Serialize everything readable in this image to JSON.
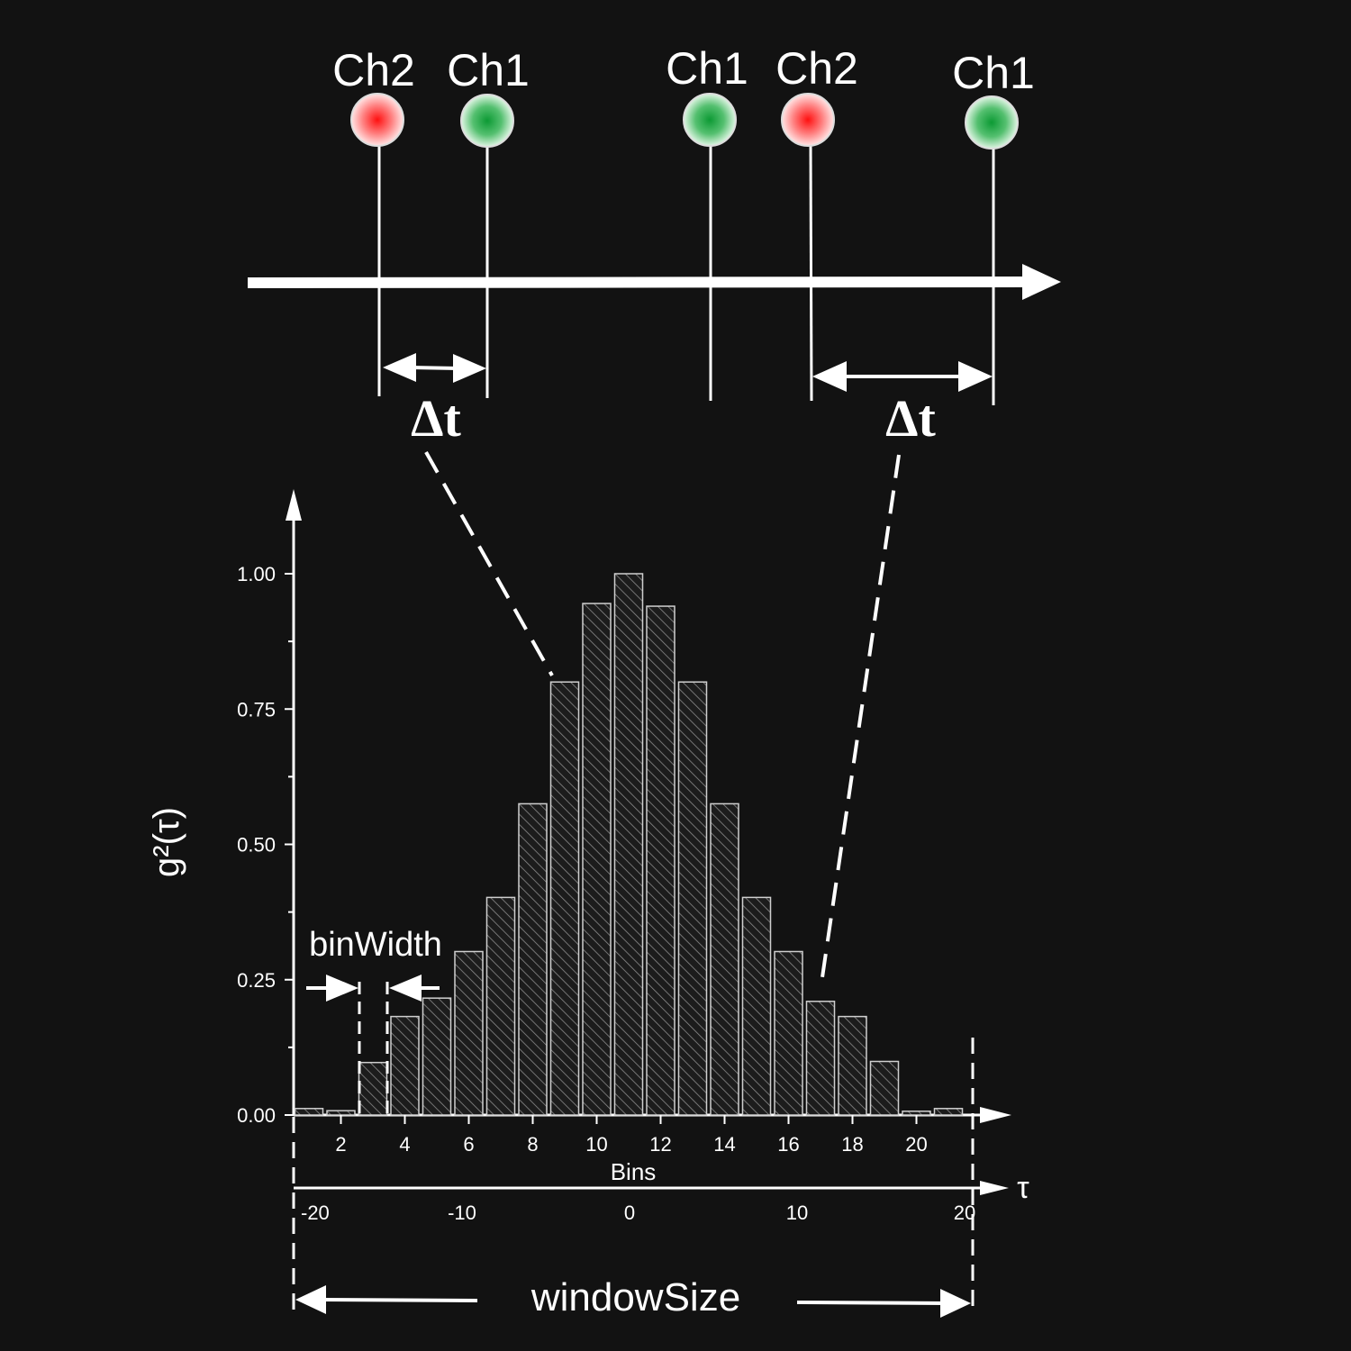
{
  "timeline": {
    "events": [
      {
        "channel": "Ch2",
        "color": "red"
      },
      {
        "channel": "Ch1",
        "color": "green"
      },
      {
        "channel": "Ch1",
        "color": "green"
      },
      {
        "channel": "Ch2",
        "color": "red"
      },
      {
        "channel": "Ch1",
        "color": "green"
      }
    ],
    "delta_labels": [
      "Δt",
      "Δt"
    ]
  },
  "annotations": {
    "bin_width": "binWidth",
    "window_size": "windowSize",
    "tau_symbol": "τ"
  },
  "chart_data": {
    "type": "bar",
    "ylabel": "g²(τ)",
    "xlabel": "Bins",
    "ylim": [
      0,
      1.0
    ],
    "y_ticks": [
      "0.00",
      "0.25",
      "0.50",
      "0.75",
      "1.00"
    ],
    "x_ticks": [
      "2",
      "4",
      "6",
      "8",
      "10",
      "12",
      "14",
      "16",
      "18",
      "20"
    ],
    "tau_ticks": [
      "-20",
      "-10",
      "0",
      "10",
      "20"
    ],
    "bins": [
      1,
      2,
      3,
      4,
      5,
      6,
      7,
      8,
      9,
      10,
      11,
      12,
      13,
      14,
      15,
      16,
      17,
      18,
      19,
      20,
      21,
      22
    ],
    "values": [
      0.012,
      0.008,
      0.097,
      0.182,
      0.216,
      0.302,
      0.402,
      0.575,
      0.8,
      0.945,
      1.0,
      0.94,
      0.8,
      0.575,
      0.402,
      0.302,
      0.21,
      0.182,
      0.099,
      0.007,
      0.012,
      0.0
    ],
    "colors": {
      "bar_fill": "#1a1a1a",
      "bar_stroke": "#cfcfcf",
      "ch1": "#22aa44",
      "ch2": "#ee2222"
    }
  }
}
